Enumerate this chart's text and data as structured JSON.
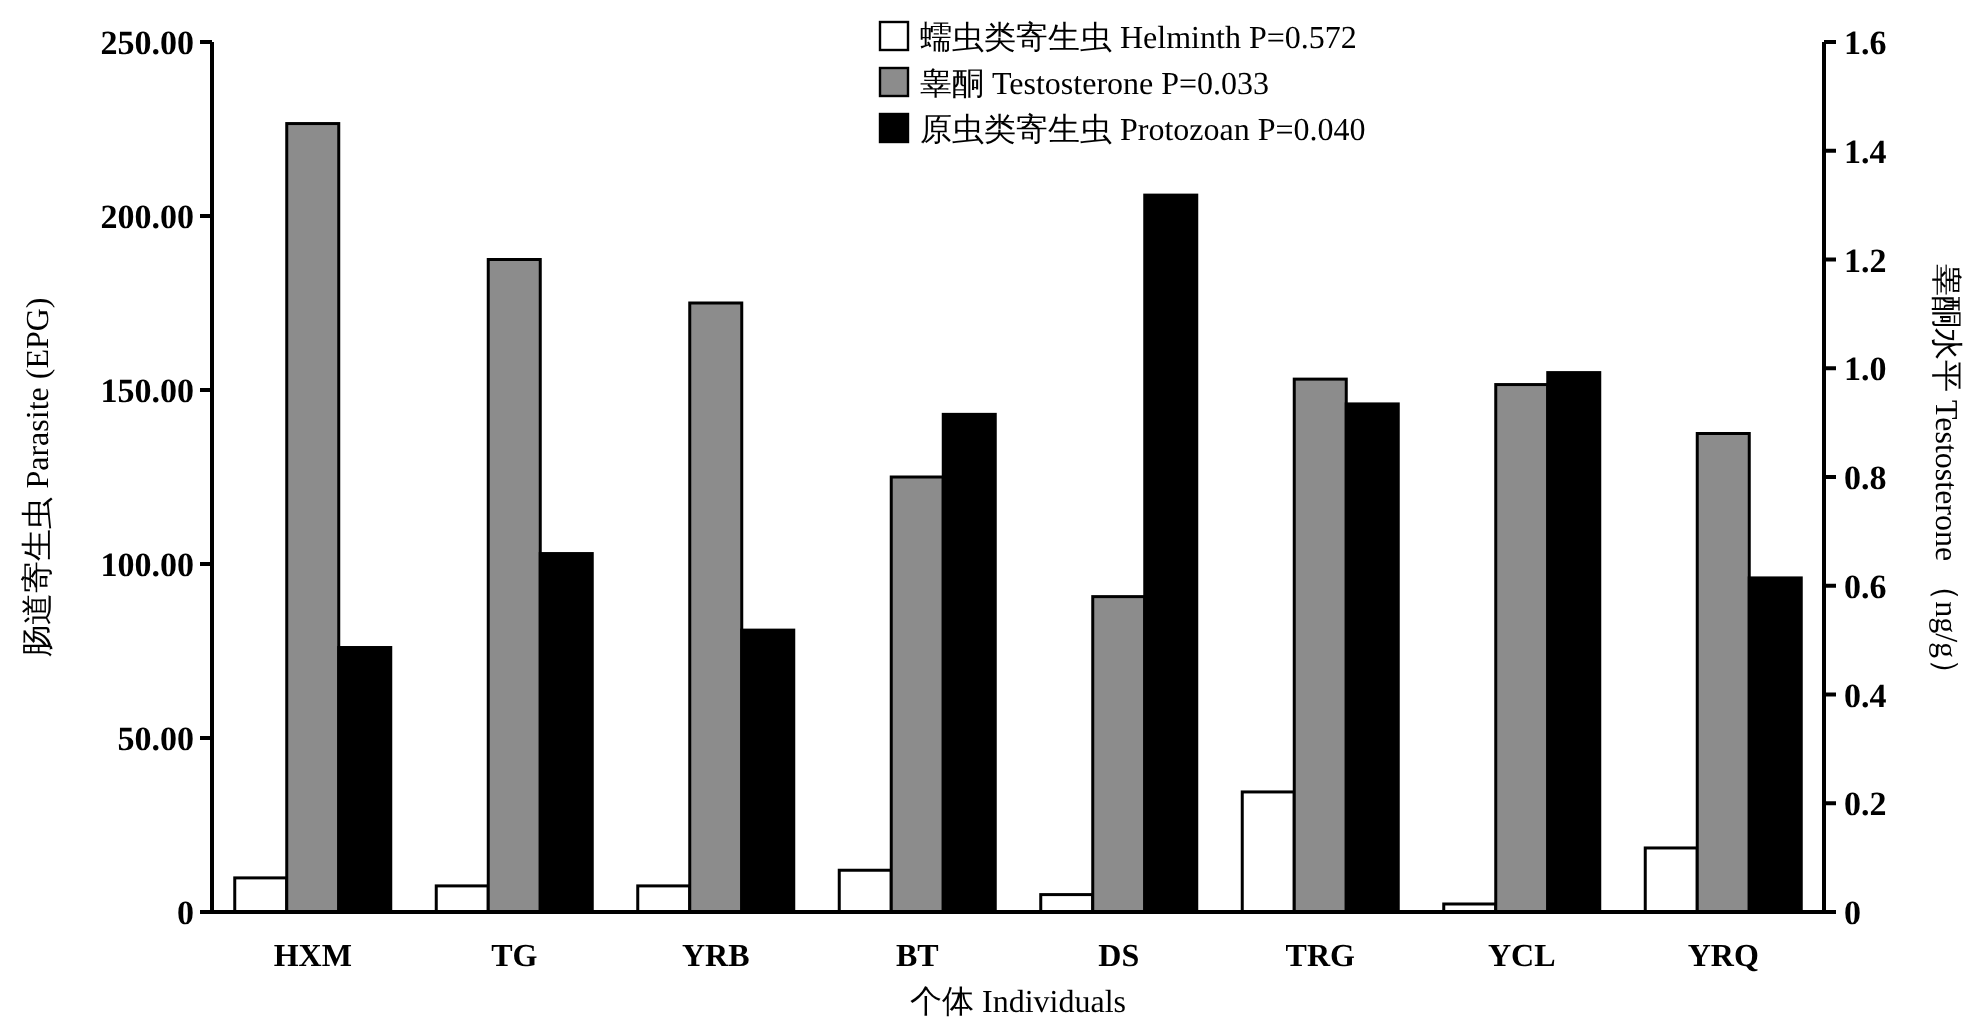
{
  "chart_data": {
    "type": "bar",
    "xlabel": "个体 Individuals",
    "ylabel": "肠道寄生虫 Parasite (EPG)",
    "y2label": "睾酮水平 Testosterone （ng/g）",
    "categories": [
      "HXM",
      "TG",
      "YRB",
      "BT",
      "DS",
      "TRG",
      "YCL",
      "YRQ"
    ],
    "series": [
      {
        "name": "蠕虫类寄生虫 Helminth P=0.572",
        "color": "#ffffff",
        "values": [
          9.8,
          7.5,
          7.5,
          12,
          5,
          34.5,
          2.3,
          18.4
        ]
      },
      {
        "name": "睾酮 Testosterone P=0.033",
        "color": "#8c8c8c",
        "axis": "y2",
        "values": [
          1.45,
          1.2,
          1.12,
          0.8,
          0.58,
          0.98,
          0.97,
          0.88
        ]
      },
      {
        "name": "原虫类寄生虫 Protozoan P=0.040",
        "color": "#000000",
        "values": [
          76,
          103,
          81,
          143,
          206,
          146,
          155,
          96
        ]
      }
    ],
    "ylim": [
      0,
      250
    ],
    "yticks": [
      0,
      {
        "value": 50,
        "label": "50.00"
      },
      {
        "value": 100,
        "label": "100.00"
      },
      {
        "value": 150,
        "label": "150.00"
      },
      {
        "value": 200,
        "label": "200.00"
      },
      {
        "value": 250,
        "label": "250.00"
      }
    ],
    "y2lim": [
      0,
      1.6
    ],
    "y2ticks": [
      0,
      0.2,
      0.4,
      0.6,
      0.8,
      {
        "value": 1,
        "label": "1.0"
      },
      1.2,
      1.4,
      1.6
    ],
    "grid": false,
    "legend": "top"
  }
}
